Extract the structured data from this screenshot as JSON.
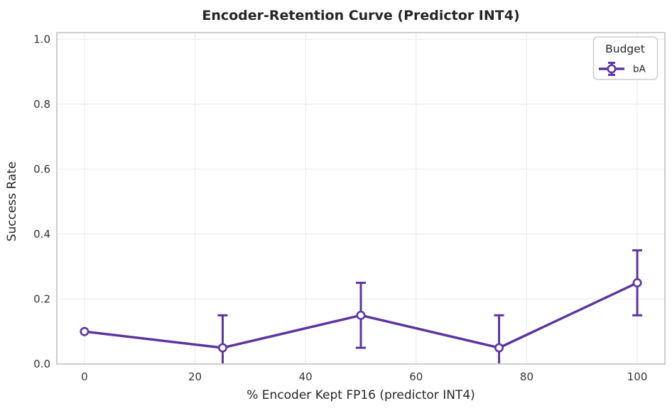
{
  "title": "Encoder-Retention Curve (Predictor INT4)",
  "chart_data": {
    "type": "line",
    "title": "Encoder-Retention Curve (Predictor INT4)",
    "xlabel": "% Encoder Kept FP16 (predictor INT4)",
    "ylabel": "Success Rate",
    "x": [
      0,
      25,
      50,
      75,
      100
    ],
    "series": [
      {
        "name": "bA",
        "values": [
          0.1,
          0.05,
          0.15,
          0.05,
          0.25
        ],
        "yerr": [
          0.0,
          0.1,
          0.1,
          0.1,
          0.1
        ],
        "color": "#5c35a0",
        "marker": "open-circle"
      }
    ],
    "xlim": [
      -5,
      105
    ],
    "ylim": [
      0,
      1.02
    ],
    "xticks": [
      0,
      20,
      40,
      60,
      80,
      100
    ],
    "xtick_labels": [
      "0",
      "20",
      "40",
      "60",
      "80",
      "100"
    ],
    "yticks": [
      0.0,
      0.2,
      0.4,
      0.6,
      0.8,
      1.0
    ],
    "ytick_labels": [
      "0.0",
      "0.2",
      "0.4",
      "0.6",
      "0.8",
      "1.0"
    ],
    "grid": true,
    "legend": {
      "title": "Budget",
      "entries": [
        "bA"
      ],
      "position": "upper right"
    }
  },
  "colors": {
    "line": "#5c35a0",
    "grid": "#ececec",
    "spine": "#c9c9c9",
    "text": "#262626",
    "tick_text": "#333333",
    "legend_border": "#cccccc",
    "background": "#ffffff"
  }
}
